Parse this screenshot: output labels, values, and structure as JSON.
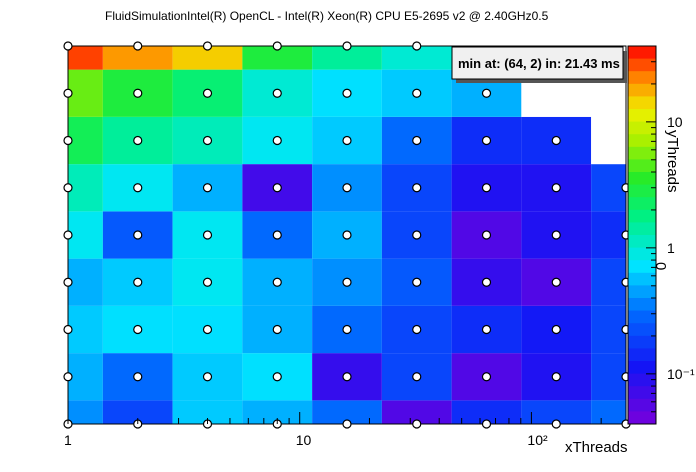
{
  "chart_data": {
    "type": "heatmap",
    "title": "FluidSimulationIntel(R) OpenCL -       Intel(R) Xeon(R) CPU E5-2695 v2 @ 2.40GHz0.5",
    "xlabel": "xThreads",
    "ylabel": "yThreads",
    "zlabel": "0",
    "x_scale": "log",
    "z_scale": "log",
    "x": [
      1,
      2,
      4,
      8,
      16,
      32,
      64,
      128,
      256
    ],
    "y": [
      0,
      1,
      2,
      3,
      4,
      5,
      6,
      7,
      8
    ],
    "x_tick_labels": [
      "1",
      "10",
      "10²"
    ],
    "z_tick_labels": [
      "10",
      "1",
      "10⁻¹"
    ],
    "zlim": [
      0.04,
      40
    ],
    "annotation": "min at: (64, 2) in: 21.43 ms",
    "z": [
      [
        0.4,
        0.2,
        0.6,
        0.5,
        0.3,
        0.06,
        0.15,
        0.2,
        0.3
      ],
      [
        0.5,
        0.3,
        0.6,
        0.7,
        0.08,
        0.2,
        0.06,
        0.1,
        0.2
      ],
      [
        0.6,
        0.7,
        0.7,
        0.5,
        0.3,
        0.2,
        0.15,
        0.12,
        0.2
      ],
      [
        0.5,
        0.6,
        0.8,
        0.5,
        0.4,
        0.25,
        0.08,
        0.06,
        0.2
      ],
      [
        0.8,
        0.25,
        0.8,
        0.3,
        0.5,
        0.2,
        0.06,
        0.1,
        0.15
      ],
      [
        1.2,
        0.8,
        0.5,
        0.07,
        0.4,
        0.2,
        0.1,
        0.1,
        0.2
      ],
      [
        2.5,
        1.5,
        1.2,
        0.8,
        0.6,
        0.3,
        0.15,
        0.15,
        null
      ],
      [
        5,
        3,
        2,
        1,
        0.7,
        0.6,
        0.5,
        null,
        null
      ],
      [
        30,
        20,
        15,
        3,
        1.5,
        1,
        null,
        null,
        null
      ]
    ],
    "grid": false,
    "legend": "right-color-bar"
  }
}
